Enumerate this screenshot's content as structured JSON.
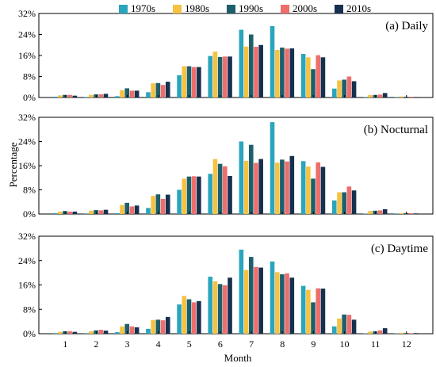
{
  "figure": {
    "ylabel": "Percentage",
    "xlabel": "Month"
  },
  "legend": [
    {
      "name": "1970s",
      "color": "#2aa5bd"
    },
    {
      "name": "1980s",
      "color": "#f5c242"
    },
    {
      "name": "1990s",
      "color": "#1d5f6a"
    },
    {
      "name": "2000s",
      "color": "#ee6e6c"
    },
    {
      "name": "2010s",
      "color": "#16304f"
    }
  ],
  "chart_data": [
    {
      "type": "bar",
      "title": "(a) Daily",
      "categories": [
        "1",
        "2",
        "3",
        "4",
        "5",
        "6",
        "7",
        "8",
        "9",
        "10",
        "11",
        "12"
      ],
      "ylim": [
        0,
        32
      ],
      "yticks": [
        "0%",
        "8%",
        "16%",
        "24%",
        "32%"
      ],
      "series": [
        {
          "name": "1970s",
          "values": [
            0.3,
            0.2,
            0.5,
            2.0,
            8.5,
            15.8,
            25.8,
            27.2,
            16.6,
            3.4,
            0.1,
            0.2
          ]
        },
        {
          "name": "1980s",
          "values": [
            0.8,
            1.0,
            2.8,
            5.4,
            11.9,
            17.5,
            19.4,
            18.1,
            15.3,
            6.5,
            0.9,
            0.4
          ]
        },
        {
          "name": "1990s",
          "values": [
            1.0,
            1.2,
            3.5,
            5.5,
            11.9,
            15.4,
            24.0,
            19.0,
            10.8,
            6.8,
            1.0,
            0.3
          ]
        },
        {
          "name": "2000s",
          "values": [
            1.0,
            1.2,
            2.6,
            4.8,
            11.6,
            15.6,
            19.3,
            18.6,
            16.1,
            8.0,
            1.1,
            0.3
          ]
        },
        {
          "name": "2010s",
          "values": [
            0.7,
            1.4,
            2.6,
            6.0,
            11.6,
            15.6,
            20.0,
            18.7,
            15.3,
            6.2,
            1.7,
            0.2
          ]
        }
      ]
    },
    {
      "type": "bar",
      "title": "(b) Nocturnal",
      "categories": [
        "1",
        "2",
        "3",
        "4",
        "5",
        "6",
        "7",
        "8",
        "9",
        "10",
        "11",
        "12"
      ],
      "ylim": [
        0,
        32
      ],
      "yticks": [
        "0%",
        "8%",
        "16%",
        "24%",
        "32%"
      ],
      "series": [
        {
          "name": "1970s",
          "values": [
            0.3,
            0.2,
            0.3,
            2.0,
            8.0,
            13.3,
            24.0,
            30.4,
            17.5,
            4.5,
            0.1,
            0.2
          ]
        },
        {
          "name": "1980s",
          "values": [
            0.8,
            1.1,
            3.0,
            6.0,
            11.7,
            18.2,
            17.6,
            17.0,
            15.7,
            7.2,
            1.0,
            0.3
          ]
        },
        {
          "name": "1990s",
          "values": [
            1.0,
            1.3,
            3.7,
            6.5,
            12.4,
            16.6,
            22.9,
            18.0,
            11.7,
            7.2,
            1.1,
            0.3
          ]
        },
        {
          "name": "2000s",
          "values": [
            0.8,
            1.2,
            2.5,
            5.0,
            12.5,
            15.8,
            16.9,
            17.4,
            17.1,
            9.1,
            1.2,
            0.3
          ]
        },
        {
          "name": "2010s",
          "values": [
            0.8,
            1.4,
            2.8,
            6.4,
            12.4,
            12.6,
            18.2,
            19.2,
            15.6,
            7.8,
            1.6,
            0.2
          ]
        }
      ]
    },
    {
      "type": "bar",
      "title": "(c) Daytime",
      "categories": [
        "1",
        "2",
        "3",
        "4",
        "5",
        "6",
        "7",
        "8",
        "9",
        "10",
        "11",
        "12"
      ],
      "ylim": [
        0,
        32
      ],
      "yticks": [
        "0%",
        "8%",
        "16%",
        "24%",
        "32%"
      ],
      "series": [
        {
          "name": "1970s",
          "values": [
            0.2,
            0.2,
            0.5,
            1.6,
            9.6,
            18.7,
            27.6,
            23.7,
            15.7,
            2.4,
            0.1,
            0.1
          ]
        },
        {
          "name": "1980s",
          "values": [
            0.6,
            0.8,
            2.4,
            4.5,
            12.4,
            17.2,
            20.9,
            20.2,
            14.4,
            5.0,
            0.7,
            0.3
          ]
        },
        {
          "name": "1990s",
          "values": [
            0.8,
            1.1,
            3.2,
            4.6,
            11.3,
            16.3,
            25.2,
            19.5,
            10.3,
            6.3,
            0.8,
            0.2
          ]
        },
        {
          "name": "2000s",
          "values": [
            0.8,
            1.3,
            2.4,
            4.4,
            10.3,
            15.9,
            21.9,
            19.8,
            14.9,
            6.2,
            1.1,
            0.2
          ]
        },
        {
          "name": "2010s",
          "values": [
            0.6,
            1.0,
            2.1,
            5.5,
            10.7,
            18.4,
            21.7,
            18.4,
            14.8,
            4.6,
            1.8,
            0.2
          ]
        }
      ]
    }
  ]
}
